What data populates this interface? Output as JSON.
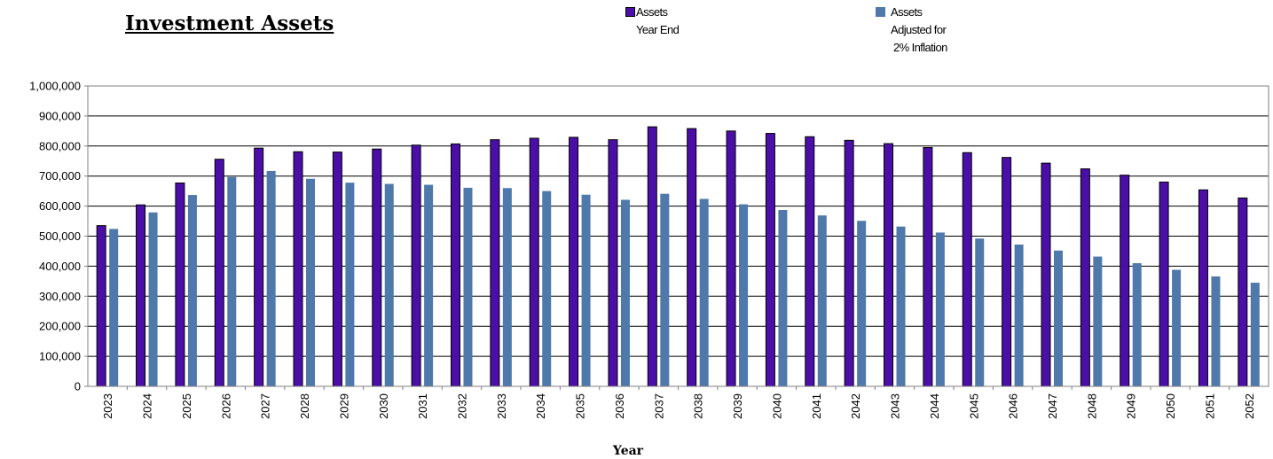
{
  "chart_data": {
    "type": "bar",
    "title": "Investment  Assets",
    "xlabel": "Year",
    "ylabel": "",
    "ylim": [
      0,
      1000000
    ],
    "yticks": [
      "0",
      "100,000",
      "200,000",
      "300,000",
      "400,000",
      "500,000",
      "600,000",
      "700,000",
      "800,000",
      "900,000",
      "1,000,000"
    ],
    "grid": true,
    "legend_position": "top",
    "categories": [
      "2023",
      "2024",
      "2025",
      "2026",
      "2027",
      "2028",
      "2029",
      "2030",
      "2031",
      "2032",
      "2033",
      "2034",
      "2035",
      "2036",
      "2037",
      "2038",
      "2039",
      "2040",
      "2041",
      "2042",
      "2043",
      "2044",
      "2045",
      "2046",
      "2047",
      "2048",
      "2049",
      "2050",
      "2051",
      "2052"
    ],
    "series": [
      {
        "name": "Assets Year End",
        "legend_lines": [
          "Assets",
          "Year End"
        ],
        "color": "#4b0fa8",
        "values": [
          535000,
          604000,
          677000,
          756000,
          793000,
          781000,
          780000,
          790000,
          803000,
          807000,
          821000,
          826000,
          829000,
          821000,
          864000,
          858000,
          850000,
          842000,
          831000,
          819000,
          808000,
          795000,
          778000,
          762000,
          743000,
          724000,
          703000,
          680000,
          654000,
          627000
        ]
      },
      {
        "name": "Assets Adjusted for 2% Inflation",
        "legend_lines": [
          "Assets",
          "Adjusted for",
          "2% Inflation"
        ],
        "color": "#4f79aa",
        "values": [
          524000,
          579000,
          637000,
          697000,
          717000,
          691000,
          678000,
          674000,
          671000,
          661000,
          660000,
          650000,
          638000,
          621000,
          641000,
          624000,
          606000,
          587000,
          569000,
          551000,
          532000,
          512000,
          492000,
          472000,
          452000,
          432000,
          410000,
          388000,
          366000,
          345000
        ]
      }
    ]
  }
}
